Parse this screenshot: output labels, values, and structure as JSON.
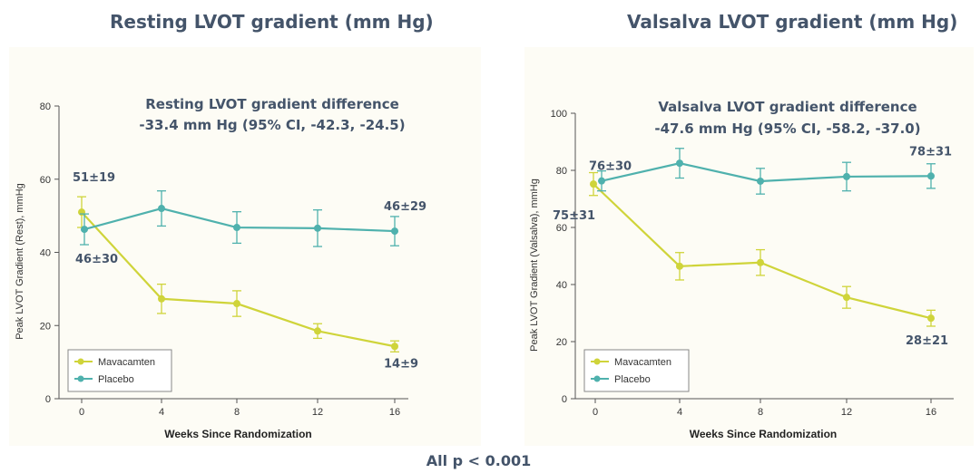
{
  "footer": "All p < 0.001",
  "colors": {
    "mavacamten": "#cfd43a",
    "placebo": "#4fb1ad",
    "text": "#44546a",
    "axis": "#555555"
  },
  "chart_data": [
    {
      "type": "line",
      "title": "Resting LVOT gradient (mm Hg)",
      "annotation": [
        "Resting LVOT gradient difference",
        "-33.4 mm Hg (95% CI, -42.3, -24.5)"
      ],
      "xlabel": "Weeks Since Randomization",
      "ylabel": "Peak LVOT Gradient (Rest), mmHg",
      "x": [
        0,
        4,
        8,
        12,
        16
      ],
      "xticks": [
        "0",
        "4",
        "8",
        "12",
        "16"
      ],
      "ylim": [
        0,
        80
      ],
      "yticks": [
        0,
        20,
        40,
        60,
        80
      ],
      "series": [
        {
          "name": "Mavacamten",
          "values": [
            51,
            27.3,
            26,
            18.5,
            14.3
          ],
          "err": [
            4.2,
            4,
            3.5,
            2,
            1.5
          ]
        },
        {
          "name": "Placebo",
          "values": [
            46.3,
            52,
            46.8,
            46.6,
            45.8
          ],
          "err": [
            4.2,
            4.8,
            4.3,
            5,
            4
          ]
        }
      ],
      "labels": [
        {
          "text": "51±19",
          "series": 0,
          "index": 0
        },
        {
          "text": "46±30",
          "series": 1,
          "index": 0
        },
        {
          "text": "46±29",
          "series": 1,
          "index": 4
        },
        {
          "text": "14±9",
          "series": 0,
          "index": 4
        }
      ],
      "legend": "bottom-left"
    },
    {
      "type": "line",
      "title": "Valsalva LVOT gradient (mm Hg)",
      "annotation": [
        "Valsalva LVOT gradient difference",
        "-47.6 mm Hg (95% CI, -58.2, -37.0)"
      ],
      "xlabel": "Weeks Since Randomization",
      "ylabel": "Peak LVOT Gradient (Valsalva), mmHg",
      "x": [
        0,
        4,
        8,
        12,
        16
      ],
      "xticks": [
        "0",
        "4",
        "8",
        "12",
        "16"
      ],
      "ylim": [
        0,
        100
      ],
      "yticks": [
        0,
        20,
        40,
        60,
        80,
        100
      ],
      "series": [
        {
          "name": "Mavacamten",
          "values": [
            75.2,
            46.4,
            47.7,
            35.5,
            28.2
          ],
          "err": [
            4,
            4.8,
            4.5,
            3.8,
            2.8
          ]
        },
        {
          "name": "Placebo",
          "values": [
            76.3,
            82.5,
            76.2,
            77.8,
            78
          ],
          "err": [
            3.5,
            5.2,
            4.5,
            5,
            4.3
          ]
        }
      ],
      "labels": [
        {
          "text": "76±30",
          "series": 1,
          "index": 0
        },
        {
          "text": "75±31",
          "series": 0,
          "index": 0
        },
        {
          "text": "78±31",
          "series": 1,
          "index": 4
        },
        {
          "text": "28±21",
          "series": 0,
          "index": 4
        }
      ],
      "legend": "bottom-left"
    }
  ]
}
